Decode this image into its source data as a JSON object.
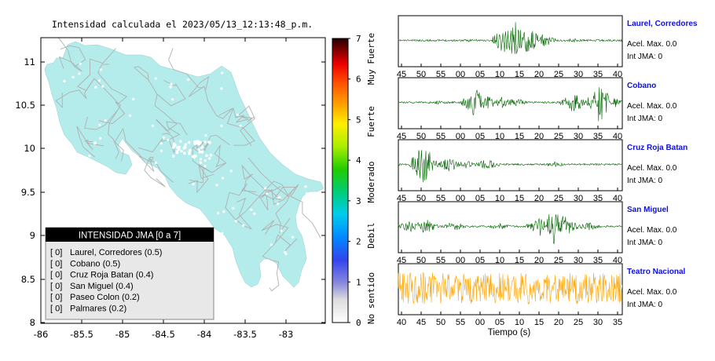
{
  "map": {
    "title": "Intensidad calculada el 2023/05/13_12:13:48_p.m.",
    "x_ticks": [
      "-86",
      "-85.5",
      "-85",
      "-84.5",
      "-84",
      "-83.5",
      "-83"
    ],
    "y_ticks": [
      "11",
      "10.5",
      "10",
      "9.5",
      "9",
      "8.5",
      "8"
    ],
    "xlim": [
      -86,
      -82.5
    ],
    "ylim": [
      8,
      11.3
    ],
    "land_color": "#b4ecec",
    "legend": {
      "title": "INTENSIDAD JMA [0 a 7]",
      "items": [
        {
          "value": "[ 0]",
          "label": "Laurel, Corredores (0.5)"
        },
        {
          "value": "[ 0]",
          "label": "Cobano (0.5)"
        },
        {
          "value": "[ 0]",
          "label": "Cruz Roja Batan (0.4)"
        },
        {
          "value": "[ 0]",
          "label": "San Miguel (0.4)"
        },
        {
          "value": "[ 0]",
          "label": "Paseo Colon (0.2)"
        },
        {
          "value": "[ 0]",
          "label": "Palmares (0.2)"
        }
      ]
    }
  },
  "colorbar": {
    "ticks": [
      "0",
      "1",
      "2",
      "3",
      "4",
      "5",
      "6",
      "7"
    ],
    "range": [
      0,
      7
    ],
    "labels": [
      "No sentido",
      "Debil",
      "Moderado",
      "Fuerte",
      "Muy Fuerte"
    ]
  },
  "waveforms": {
    "xlabel": "Tiempo (s)",
    "stations": [
      {
        "name": "Laurel, Corredores",
        "acel": "Acel. Max. 0.0",
        "int": "Int JMA: 0",
        "color": "#006400",
        "ticks": [
          "45",
          "50",
          "55",
          "00",
          "05",
          "10",
          "15",
          "20",
          "25",
          "30",
          "35",
          "40"
        ]
      },
      {
        "name": "Cobano",
        "acel": "Acel. Max. 0.0",
        "int": "Int JMA: 0",
        "color": "#006400",
        "ticks": [
          "45",
          "50",
          "55",
          "00",
          "05",
          "10",
          "15",
          "20",
          "25",
          "30",
          "35",
          "40"
        ]
      },
      {
        "name": "Cruz Roja Batan",
        "acel": "Acel. Max. 0.0",
        "int": "Int JMA: 0",
        "color": "#006400",
        "ticks": [
          "45",
          "50",
          "55",
          "00",
          "05",
          "10",
          "15",
          "20",
          "25",
          "30",
          "35",
          "40"
        ]
      },
      {
        "name": "San Miguel",
        "acel": "Acel. Max. 0.0",
        "int": "Int JMA: 0",
        "color": "#006400",
        "ticks": [
          "45",
          "50",
          "55",
          "00",
          "05",
          "10",
          "15",
          "20",
          "25",
          "30",
          "35",
          "40"
        ]
      },
      {
        "name": "Teatro Nacional",
        "acel": "Acel. Max. 0.0",
        "int": "Int JMA: 0",
        "color": "#ffa500",
        "ticks": [
          "40",
          "45",
          "50",
          "55",
          "00",
          "05",
          "10",
          "15",
          "20",
          "25",
          "30",
          "35"
        ]
      }
    ]
  },
  "chart_data": [
    {
      "type": "map",
      "title": "Intensidad calculada el 2023/05/13_12:13:48_p.m.",
      "xlim": [
        -86,
        -82.5
      ],
      "ylim": [
        8,
        11.3
      ],
      "legend": "bottom-left"
    },
    {
      "type": "line",
      "xlabel": "Tiempo (s)",
      "series": [
        {
          "name": "Laurel, Corredores"
        },
        {
          "name": "Cobano"
        },
        {
          "name": "Cruz Roja Batan"
        },
        {
          "name": "San Miguel"
        },
        {
          "name": "Teatro Nacional"
        }
      ]
    }
  ]
}
